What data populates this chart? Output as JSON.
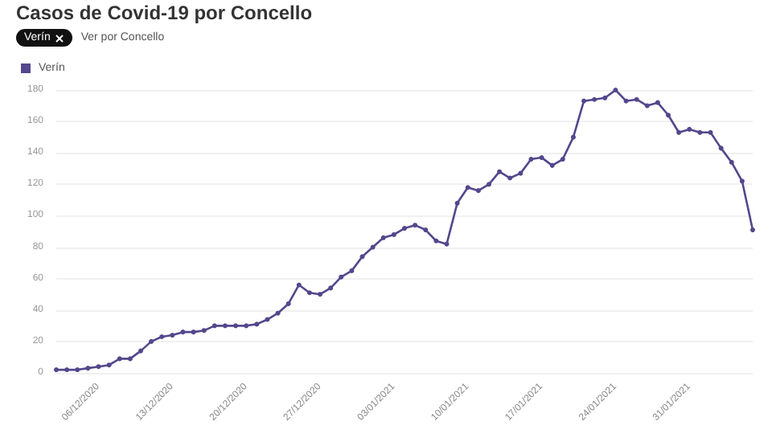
{
  "chart_data": {
    "type": "line",
    "title": "Casos de Covid-19 por Concello",
    "annotations": [
      "Verín",
      "Ver por Concello"
    ],
    "categories": [
      null,
      null,
      null,
      null,
      "06/12/2020",
      null,
      null,
      null,
      null,
      null,
      null,
      "13/12/2020",
      null,
      null,
      null,
      null,
      null,
      null,
      "20/12/2020",
      null,
      null,
      null,
      null,
      null,
      null,
      "27/12/2020",
      null,
      null,
      null,
      null,
      null,
      null,
      "03/01/2021",
      null,
      null,
      null,
      null,
      null,
      null,
      "10/01/2021",
      null,
      null,
      null,
      null,
      null,
      null,
      "17/01/2021",
      null,
      null,
      null,
      null,
      null,
      null,
      "24/01/2021",
      null,
      null,
      null,
      null,
      null,
      null,
      "31/01/2021",
      null,
      null,
      null,
      null,
      null,
      null
    ],
    "series": [
      {
        "name": "Verín",
        "color": "#54478c",
        "values": [
          2,
          2,
          2,
          3,
          4,
          5,
          9,
          9,
          14,
          20,
          23,
          24,
          26,
          26,
          27,
          30,
          30,
          30,
          30,
          31,
          34,
          38,
          44,
          56,
          51,
          50,
          54,
          61,
          65,
          74,
          80,
          86,
          88,
          92,
          94,
          91,
          84,
          82,
          108,
          118,
          116,
          120,
          128,
          124,
          127,
          136,
          137,
          132,
          136,
          150,
          173,
          174,
          175,
          180,
          173,
          174,
          170,
          172,
          164,
          153,
          155,
          153,
          153,
          143,
          134,
          122,
          91
        ]
      }
    ],
    "ylim": [
      0,
      180
    ],
    "yticks": [
      0,
      20,
      40,
      60,
      80,
      100,
      120,
      140,
      160,
      180
    ],
    "grid": "y",
    "legend": "top left",
    "marker": "circle",
    "line_style": "solid"
  }
}
